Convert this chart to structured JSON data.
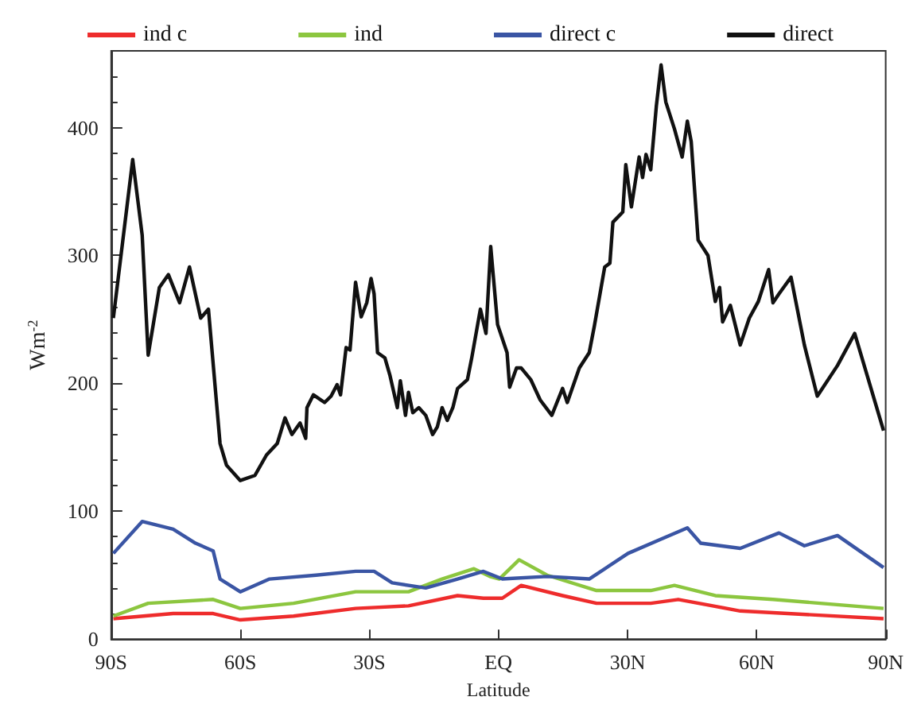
{
  "chart_data": {
    "type": "line",
    "xlabel": "Latitude",
    "ylabel": "Wm$^{-2}$",
    "xlim": [
      -90,
      90
    ],
    "xticks": [
      {
        "value": -90,
        "label": "90S"
      },
      {
        "value": -60,
        "label": "60S"
      },
      {
        "value": -30,
        "label": "30S"
      },
      {
        "value": 0,
        "label": "EQ"
      },
      {
        "value": 30,
        "label": "30N"
      },
      {
        "value": 60,
        "label": "60N"
      },
      {
        "value": 90,
        "label": "90N"
      }
    ],
    "ylim": [
      0,
      460
    ],
    "yticks": [
      0,
      100,
      200,
      300,
      400
    ],
    "grid": false,
    "legend": "top",
    "marker": "none",
    "line_style": "solid",
    "series": [
      {
        "name": "ind c",
        "color": "#ee2c2c",
        "x": [
          -89.5,
          -75.6,
          -66.3,
          -60,
          -47.6,
          -33.2,
          -20.9,
          -9.5,
          -3.5,
          0.9,
          5.3,
          14.9,
          22.8,
          35.4,
          41.8,
          56.2,
          89.5
        ],
        "values": [
          16,
          20,
          20,
          15,
          18,
          24,
          26,
          34,
          32,
          32,
          42,
          34,
          28,
          28,
          31,
          22,
          16
        ]
      },
      {
        "name": "ind",
        "color": "#8cc63f",
        "x": [
          -89.5,
          -81.4,
          -66.3,
          -60,
          -47.6,
          -33.2,
          -20.9,
          -13.1,
          -5.7,
          -2.0,
          0.2,
          4.8,
          11.3,
          22.8,
          35.4,
          40.9,
          50.4,
          63.8,
          89.5
        ],
        "values": [
          18,
          28,
          31,
          24,
          28,
          37,
          37,
          47,
          55,
          49,
          47,
          62,
          50,
          38,
          38,
          42,
          34,
          31,
          24
        ]
      },
      {
        "name": "direct c",
        "color": "#3a55a4",
        "x": [
          -89.5,
          -82.8,
          -75.6,
          -70.4,
          -66.3,
          -64.7,
          -60,
          -53.2,
          -42.4,
          -33.2,
          -28.9,
          -24.7,
          -16.9,
          -9.5,
          -3.5,
          0.9,
          11.3,
          21.1,
          30.1,
          37.0,
          43.9,
          47.0,
          56.2,
          65.2,
          71.1,
          78.8,
          89.5
        ],
        "values": [
          67,
          92,
          86,
          75,
          69,
          47,
          37,
          47,
          50,
          53,
          53,
          44,
          40,
          47,
          53,
          47,
          49,
          47,
          67,
          77,
          87,
          75,
          71,
          83,
          73,
          81,
          56
        ]
      },
      {
        "name": "direct",
        "color": "#111111",
        "x": [
          -89.5,
          -85,
          -82.8,
          -81.4,
          -78.8,
          -76.7,
          -74.1,
          -71.8,
          -69.2,
          -67.4,
          -64.7,
          -63.2,
          -60,
          -56.6,
          -53.9,
          -51.4,
          -49.6,
          -48.0,
          -46.1,
          -44.8,
          -44.5,
          -43.0,
          -40.4,
          -38.9,
          -37.5,
          -36.7,
          -35.4,
          -34.5,
          -33.2,
          -31.9,
          -30.6,
          -29.6,
          -28.9,
          -28.1,
          -26.4,
          -25.2,
          -23.5,
          -22.8,
          -21.6,
          -20.9,
          -19.9,
          -18.5,
          -16.9,
          -15.3,
          -14.2,
          -13.1,
          -11.9,
          -10.6,
          -9.5,
          -7.2,
          -6.2,
          -4.2,
          -2.9,
          -1.8,
          -0.2,
          2.0,
          2.6,
          4.2,
          5.3,
          7.5,
          9.7,
          12.4,
          14.9,
          16.0,
          18.8,
          21.1,
          22.3,
          24.7,
          25.9,
          26.6,
          28.9,
          29.6,
          30.9,
          32.7,
          33.5,
          34.3,
          35.4,
          36.7,
          37.8,
          38.9,
          40.9,
          42.7,
          43.9,
          44.8,
          46.4,
          48.7,
          50.4,
          51.4,
          52.1,
          53.9,
          56.2,
          58.3,
          60.4,
          62.8,
          63.8,
          65.2,
          68.0,
          71.1,
          74.1,
          78.8,
          82.8,
          89.5
        ],
        "values": [
          251,
          375,
          316,
          222,
          275,
          285,
          263,
          291,
          251,
          258,
          153,
          136,
          124,
          128,
          144,
          153,
          173,
          160,
          169,
          157,
          181,
          191,
          185,
          190,
          199,
          191,
          228,
          226,
          279,
          252,
          263,
          282,
          270,
          224,
          220,
          206,
          181,
          202,
          175,
          193,
          177,
          181,
          175,
          160,
          166,
          181,
          171,
          181,
          196,
          203,
          220,
          258,
          239,
          307,
          246,
          224,
          197,
          212,
          212,
          203,
          187,
          175,
          196,
          185,
          212,
          224,
          245,
          291,
          294,
          326,
          334,
          371,
          338,
          377,
          361,
          379,
          367,
          417,
          449,
          420,
          399,
          377,
          405,
          389,
          312,
          300,
          264,
          275,
          248,
          261,
          230,
          251,
          264,
          289,
          263,
          270,
          283,
          230,
          190,
          214,
          239,
          163
        ]
      }
    ]
  }
}
